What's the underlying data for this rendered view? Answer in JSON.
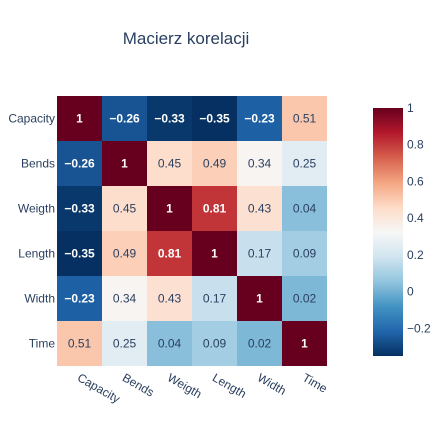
{
  "chart_data": {
    "type": "heatmap",
    "title": "Macierz korelacji",
    "x": [
      "Capacity",
      "Bends",
      "Weigth",
      "Length",
      "Width",
      "Time"
    ],
    "y": [
      "Capacity",
      "Bends",
      "Weigth",
      "Length",
      "Width",
      "Time"
    ],
    "z": [
      [
        1,
        -0.26,
        -0.33,
        -0.35,
        -0.23,
        0.51
      ],
      [
        -0.26,
        1,
        0.45,
        0.49,
        0.34,
        0.25
      ],
      [
        -0.33,
        0.45,
        1,
        0.81,
        0.43,
        0.04
      ],
      [
        -0.35,
        0.49,
        0.81,
        1,
        0.17,
        0.09
      ],
      [
        -0.23,
        0.34,
        0.43,
        0.17,
        1,
        0.02
      ],
      [
        0.51,
        0.25,
        0.04,
        0.09,
        0.02,
        1
      ]
    ],
    "cell_labels": [
      [
        "1",
        "−0.26",
        "−0.33",
        "−0.35",
        "−0.23",
        "0.51"
      ],
      [
        "−0.26",
        "1",
        "0.45",
        "0.49",
        "0.34",
        "0.25"
      ],
      [
        "−0.33",
        "0.45",
        "1",
        "0.81",
        "0.43",
        "0.04"
      ],
      [
        "−0.35",
        "0.49",
        "0.81",
        "1",
        "0.17",
        "0.09"
      ],
      [
        "−0.23",
        "0.34",
        "0.43",
        "0.17",
        "1",
        "0.02"
      ],
      [
        "0.51",
        "0.25",
        "0.04",
        "0.09",
        "0.02",
        "1"
      ]
    ],
    "colorscale": "RdBu reversed",
    "zmin": -0.35,
    "zmax": 1,
    "colorbar": {
      "ticks": [
        -0.2,
        0,
        0.2,
        0.4,
        0.6,
        0.8,
        1
      ],
      "tick_labels": [
        "−0.2",
        "0",
        "0.2",
        "0.4",
        "0.6",
        "0.8",
        "1"
      ]
    },
    "colors": {
      "title": "#2a3f5f",
      "axis_text": "#2a3f5f",
      "colorscale_stops": [
        "#053061",
        "#2166ac",
        "#4393c3",
        "#92c5de",
        "#d1e5f0",
        "#f7f7f7",
        "#fddbc7",
        "#f4a582",
        "#d6604d",
        "#b2182b",
        "#67001f"
      ]
    }
  }
}
